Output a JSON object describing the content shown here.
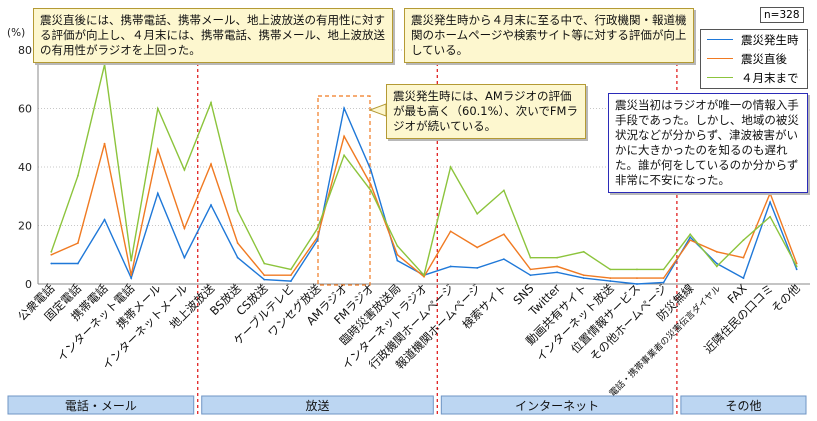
{
  "unit": "(%)",
  "n_label": "n=328",
  "notes": {
    "top_left": "震災直後には、携帯電話、携帯メール、地上波放送の有用性に対する評価が向上し、４月末には、携帯電話、携帯メール、地上波放送の有用性がラジオを上回った。",
    "top_mid": "震災発生時から４月末に至る中で、行政機関・報道機関のホームページや検索サイト等に対する評価が向上している。",
    "mid": "震災発生時には、AMラジオの評価が最も高く（60.1%）、次いでFMラジオが続いている。",
    "right": "震災当初はラジオが唯一の情報入手手段であった。しかし、地域の被災状況などが分からず、津波被害がいかに大きかったのを知るのも遅れた。誰が何をしているのか分からず非常に不安になった。"
  },
  "groups": [
    "電話・メール",
    "放送",
    "インターネット",
    "その他"
  ],
  "chart_data": {
    "type": "line",
    "ylabel": "(%)",
    "ylim": [
      0,
      80
    ],
    "yticks": [
      0,
      20,
      40,
      60,
      80
    ],
    "grid": true,
    "legend_position": "top-right",
    "categories": [
      "公衆電話",
      "固定電話",
      "携帯電話",
      "インターネット電話",
      "携帯メール",
      "インターネットメール",
      "地上波放送",
      "BS放送",
      "CS放送",
      "ケーブルテレビ",
      "ワンセグ放送",
      "AMラジオ",
      "FMラジオ",
      "臨時災害放送局",
      "インターネットラジオ",
      "行政機関ホームページ",
      "報道機関ホームページ",
      "検索サイト",
      "SNS",
      "Twitter",
      "動画共有サイト",
      "インターネット放送",
      "位置情報サービス",
      "その他ホームページ",
      "防災無線",
      "電話・携帯事業者の災害伝言ダイヤル",
      "FAX",
      "近隣住民の口コミ",
      "その他"
    ],
    "series": [
      {
        "name": "震災発生時",
        "color": "#1f78d8",
        "values": [
          7,
          7,
          22,
          2,
          31,
          9,
          27,
          9,
          1.5,
          1,
          15,
          60.1,
          39,
          8,
          3,
          6,
          5.5,
          8.5,
          3,
          4,
          2,
          1,
          0,
          0.5,
          16,
          7,
          2,
          28,
          5
        ]
      },
      {
        "name": "震災直後",
        "color": "#f07a22",
        "values": [
          10,
          14,
          48,
          3,
          46,
          19,
          41,
          14,
          3,
          3,
          16,
          50.5,
          34,
          10,
          2.5,
          18,
          12.5,
          17,
          5,
          6,
          3,
          2,
          2,
          2,
          15,
          11,
          9,
          31,
          7
        ]
      },
      {
        "name": "４月末まで",
        "color": "#8cc43c",
        "values": [
          11,
          37,
          75,
          8,
          60,
          39,
          62,
          25,
          7,
          5,
          19,
          44,
          32,
          13,
          3,
          40,
          24,
          32,
          9,
          9,
          11,
          5,
          5,
          5,
          17,
          6,
          15,
          23,
          6
        ]
      }
    ]
  }
}
